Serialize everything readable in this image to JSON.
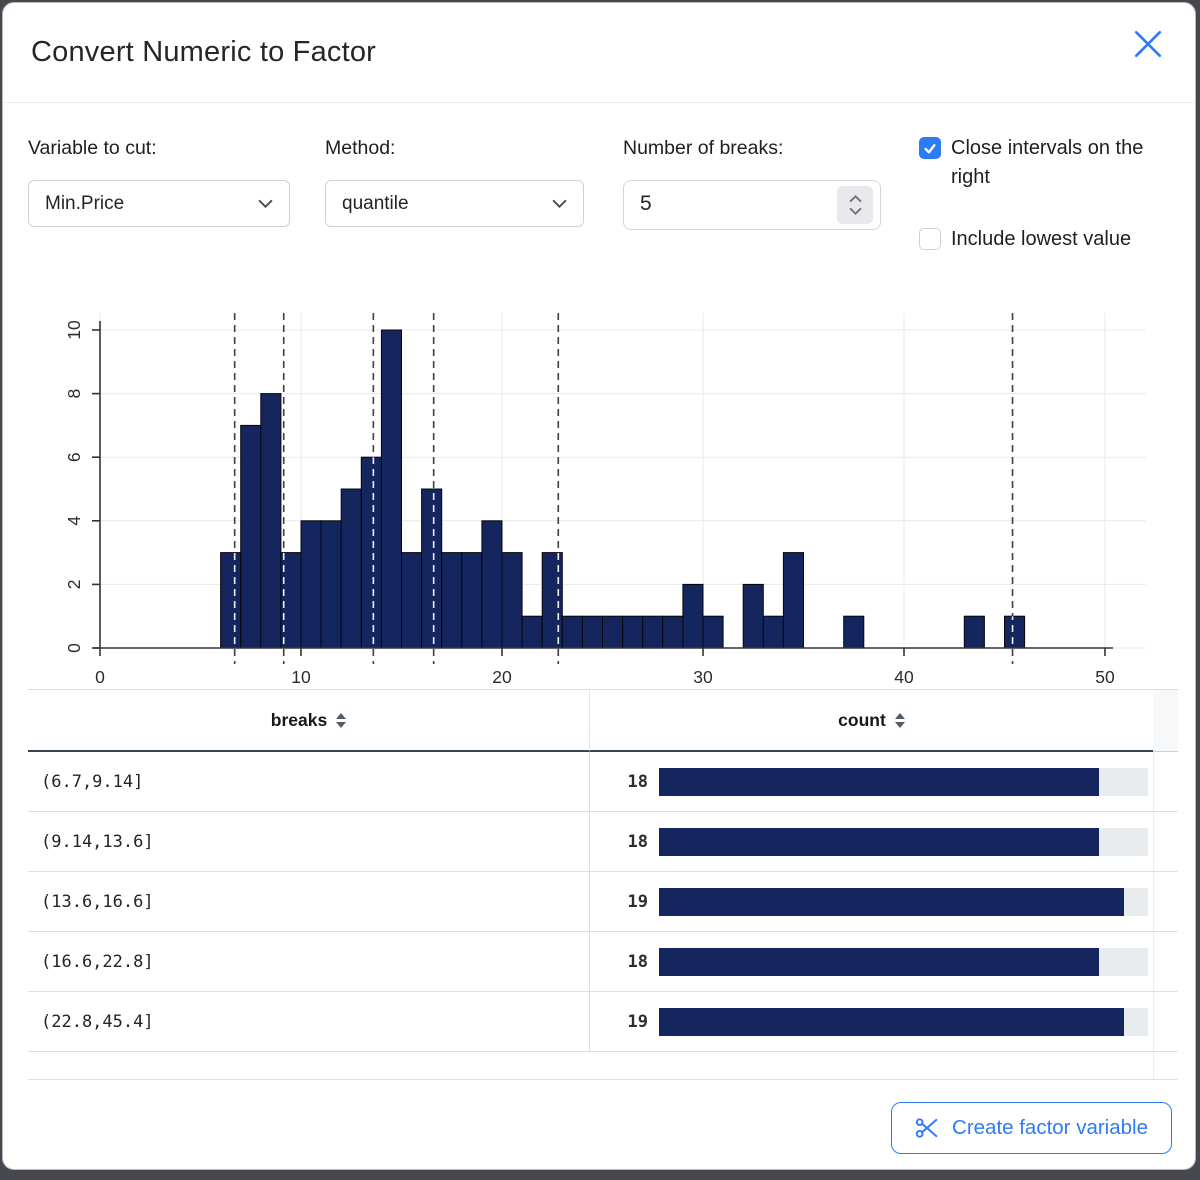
{
  "dialog": {
    "title": "Convert Numeric to Factor"
  },
  "colors": {
    "accent": "#2e7bf6",
    "bar_navy": "#15265e",
    "bar_track": "#e9ecef",
    "dashed_line": "#3f3f3f"
  },
  "icons": {
    "close": "x-mark",
    "dropdown": "chevron-down",
    "number_stepper": "chevron-up-down",
    "sort": "triangles-up-down",
    "checkbox_checked": "checkmark",
    "create_button": "scissors"
  },
  "controls": {
    "variable_label": "Variable to cut:",
    "variable_value": "Min.Price",
    "method_label": "Method:",
    "method_value": "quantile",
    "breaks_label": "Number of breaks:",
    "breaks_value": "5",
    "close_intervals_label": "Close intervals on the right",
    "close_intervals_checked": true,
    "include_lowest_label": "Include lowest value",
    "include_lowest_checked": false
  },
  "chart_data": {
    "type": "bar",
    "subtype": "histogram",
    "title": "",
    "xlabel": "",
    "ylabel": "",
    "bin_start": 6,
    "bin_width": 1,
    "counts": [
      3,
      7,
      8,
      3,
      4,
      4,
      5,
      6,
      10,
      3,
      5,
      3,
      3,
      4,
      3,
      1,
      3,
      1,
      1,
      1,
      1,
      1,
      1,
      2,
      1,
      0,
      2,
      1,
      3,
      0,
      0,
      1,
      0,
      0,
      0,
      0,
      0,
      1,
      0,
      1
    ],
    "break_lines": [
      6.7,
      9.14,
      13.6,
      16.6,
      22.8,
      45.4
    ],
    "x_ticks": [
      0,
      10,
      20,
      30,
      40,
      50
    ],
    "y_ticks": [
      0,
      2,
      4,
      6,
      8,
      10
    ],
    "xlim": [
      0,
      52
    ],
    "ylim": [
      0,
      10.45
    ],
    "grid": true,
    "legend": "none",
    "bar_color": "#15265e",
    "bar_border_color": "#06070d"
  },
  "table": {
    "columns": [
      "breaks",
      "count"
    ],
    "bar_max": 20,
    "rows": [
      {
        "breaks": "(6.7,9.14]",
        "count": 18
      },
      {
        "breaks": "(9.14,13.6]",
        "count": 18
      },
      {
        "breaks": "(13.6,16.6]",
        "count": 19
      },
      {
        "breaks": "(16.6,22.8]",
        "count": 18
      },
      {
        "breaks": "(22.8,45.4]",
        "count": 19
      }
    ]
  },
  "footer": {
    "create_button_label": "Create factor variable"
  }
}
